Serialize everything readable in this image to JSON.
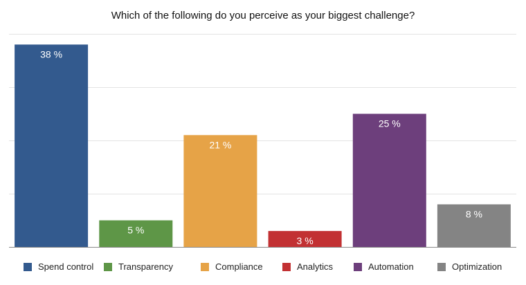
{
  "chart_data": {
    "type": "bar",
    "title": "Which of the following do you perceive as your biggest challenge?",
    "categories": [
      "Spend control",
      "Transparency",
      "Compliance",
      "Analytics",
      "Automation",
      "Optimization"
    ],
    "values": [
      38,
      5,
      21,
      3,
      25,
      8
    ],
    "data_labels": [
      "38 %",
      "5 %",
      "21 %",
      "3 %",
      "25 %",
      "8 %"
    ],
    "colors": [
      "#335a8e",
      "#5e9647",
      "#e6a347",
      "#c23133",
      "#6d3f7c",
      "#848484"
    ],
    "ylim": [
      0,
      40
    ],
    "gridlines": [
      10,
      20,
      30,
      40
    ],
    "grid": true,
    "legend": "bottom",
    "xlabel": "",
    "ylabel": ""
  }
}
